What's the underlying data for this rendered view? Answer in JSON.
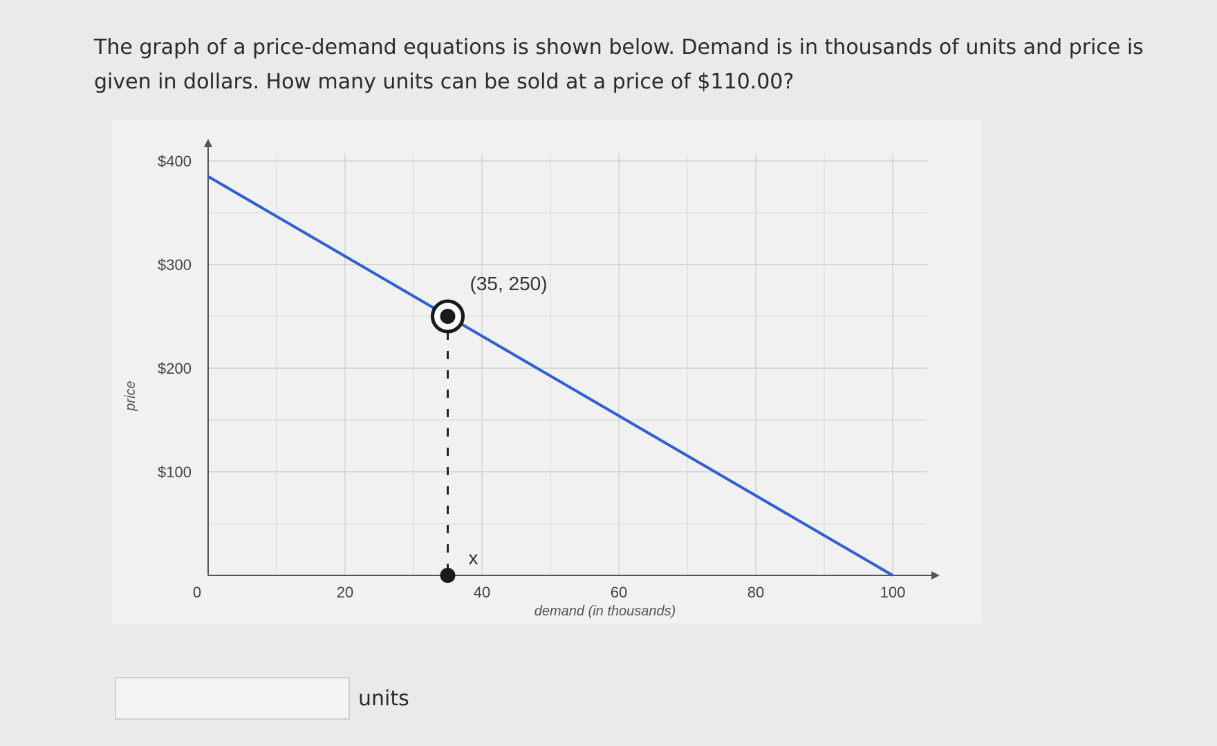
{
  "question": {
    "text_line1": "The graph of a price-demand equations is shown below. Demand is in thousands of units and price is",
    "text_line2": "given in dollars. How many units can be sold at a price of $110.00?"
  },
  "answer": {
    "value": "",
    "placeholder": "",
    "units_label": "units"
  },
  "colors": {
    "line": "#2f5fd6",
    "grid": "#cfcfcf",
    "axis": "#555555",
    "marker": "#1a1a1a"
  },
  "chart_data": {
    "type": "line",
    "title": "",
    "xlabel": "demand (in thousands)",
    "ylabel": "price",
    "xlim": [
      0,
      110
    ],
    "ylim": [
      0,
      420
    ],
    "grid": true,
    "x_ticks": [
      0,
      20,
      40,
      60,
      80,
      100
    ],
    "x_tick_labels": [
      "",
      "20",
      "40",
      "60",
      "80",
      "100"
    ],
    "origin_label": "0",
    "y_ticks": [
      100,
      200,
      300,
      400
    ],
    "y_tick_labels": [
      "$100",
      "$200",
      "$300",
      "$400"
    ],
    "series": [
      {
        "x": [
          0,
          100
        ],
        "y": [
          385,
          0
        ]
      }
    ],
    "highlight_point": {
      "x": 35,
      "y": 250,
      "label": "(35, 250)"
    },
    "dashed_drop": {
      "x": 35,
      "from_y": 250,
      "to_y": 0
    },
    "x_marker_label": "x"
  }
}
